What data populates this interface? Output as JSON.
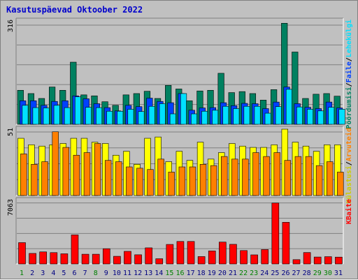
{
  "title": "Kasutuspäevad Oktoober 2022",
  "colors": {
    "background": "#c0c0c0",
    "hits": "#008060",
    "files": "#0040ff",
    "pages": "#00e0ff",
    "visits": "#ffff00",
    "sites": "#ff8000",
    "kbytes": "#ff0000",
    "title": "#0000cc",
    "weekend_day": "#008000",
    "weekday": "#000080"
  },
  "chart_data": [
    {
      "type": "bar",
      "panel": "top",
      "ymax_label": "316",
      "ylim": [
        0,
        316
      ],
      "legend": [
        {
          "text": "Pöördumisi",
          "color": "#008060"
        },
        {
          "text": "/",
          "color": "#000000"
        },
        {
          "text": "Faile",
          "color": "#0040ff"
        },
        {
          "text": "/",
          "color": "#000000"
        },
        {
          "text": "Lehekülgi",
          "color": "#00e0ff"
        }
      ],
      "categories": [
        "1",
        "2",
        "3",
        "4",
        "5",
        "6",
        "7",
        "8",
        "9",
        "10",
        "11",
        "12",
        "13",
        "14",
        "15",
        "16",
        "17",
        "18",
        "19",
        "20",
        "21",
        "22",
        "23",
        "24",
        "25",
        "26",
        "27",
        "28",
        "29",
        "30",
        "31"
      ],
      "series": [
        {
          "name": "Pöördumisi",
          "values": [
            104,
            94,
            79,
            114,
            104,
            190,
            90,
            87,
            69,
            58,
            90,
            94,
            101,
            79,
            119,
            108,
            72,
            102,
            104,
            156,
            97,
            100,
            94,
            74,
            106,
            309,
            221,
            79,
            92,
            94,
            86
          ]
        },
        {
          "name": "Faile",
          "values": [
            72,
            72,
            58,
            70,
            72,
            87,
            78,
            63,
            51,
            41,
            58,
            54,
            80,
            70,
            66,
            94,
            43,
            50,
            51,
            66,
            57,
            64,
            63,
            48,
            68,
            114,
            63,
            52,
            48,
            68,
            50
          ]
        },
        {
          "name": "Lehekülgi",
          "values": [
            58,
            51,
            50,
            58,
            51,
            84,
            52,
            51,
            40,
            40,
            46,
            39,
            55,
            63,
            32,
            94,
            32,
            40,
            43,
            55,
            48,
            55,
            55,
            34,
            54,
            107,
            53,
            46,
            41,
            52,
            46
          ]
        }
      ]
    },
    {
      "type": "bar",
      "panel": "middle",
      "ymax_label": "51",
      "ylim": [
        0,
        51
      ],
      "legend": [
        {
          "text": "Külastusi",
          "color": "#cccc00"
        },
        {
          "text": "/",
          "color": "#000000"
        },
        {
          "text": "Arvuteid",
          "color": "#ff8000"
        }
      ],
      "categories": [
        "1",
        "2",
        "3",
        "4",
        "5",
        "6",
        "7",
        "8",
        "9",
        "10",
        "11",
        "12",
        "13",
        "14",
        "15",
        "16",
        "17",
        "18",
        "19",
        "20",
        "21",
        "22",
        "23",
        "24",
        "25",
        "26",
        "27",
        "28",
        "29",
        "30",
        "31"
      ],
      "series": [
        {
          "name": "Külastusi",
          "values": [
            44,
            39,
            38,
            39,
            40,
            44,
            44,
            41,
            40,
            31,
            34,
            24,
            44,
            45,
            26,
            34,
            27,
            41,
            28,
            33,
            40,
            38,
            37,
            37,
            39,
            51,
            41,
            38,
            34,
            39,
            39
          ]
        },
        {
          "name": "Arvuteid",
          "values": [
            32,
            24,
            26,
            49,
            37,
            31,
            33,
            40,
            27,
            26,
            22,
            21,
            20,
            28,
            18,
            22,
            22,
            24,
            23,
            30,
            28,
            28,
            33,
            30,
            33,
            27,
            30,
            30,
            23,
            26,
            18
          ]
        }
      ]
    },
    {
      "type": "bar",
      "panel": "bottom",
      "ymax_label": "7063",
      "ylim": [
        0,
        7063
      ],
      "legend": [
        {
          "text": "KBaite",
          "color": "#ff0000"
        }
      ],
      "categories": [
        "1",
        "2",
        "3",
        "4",
        "5",
        "6",
        "7",
        "8",
        "9",
        "10",
        "11",
        "12",
        "13",
        "14",
        "15",
        "16",
        "17",
        "18",
        "19",
        "20",
        "21",
        "22",
        "23",
        "24",
        "25",
        "26",
        "27",
        "28",
        "29",
        "30",
        "31"
      ],
      "weekend_days": [
        "1",
        "8",
        "15",
        "16",
        "22",
        "23",
        "29",
        "30"
      ],
      "series": [
        {
          "name": "KBaite",
          "values": [
            2370,
            1170,
            1340,
            1260,
            1130,
            3230,
            1080,
            1080,
            1690,
            850,
            1400,
            1020,
            1790,
            580,
            2170,
            2500,
            2500,
            820,
            1450,
            2430,
            2180,
            1490,
            1010,
            1600,
            6770,
            4630,
            480,
            1270,
            770,
            810,
            760
          ]
        }
      ]
    }
  ]
}
